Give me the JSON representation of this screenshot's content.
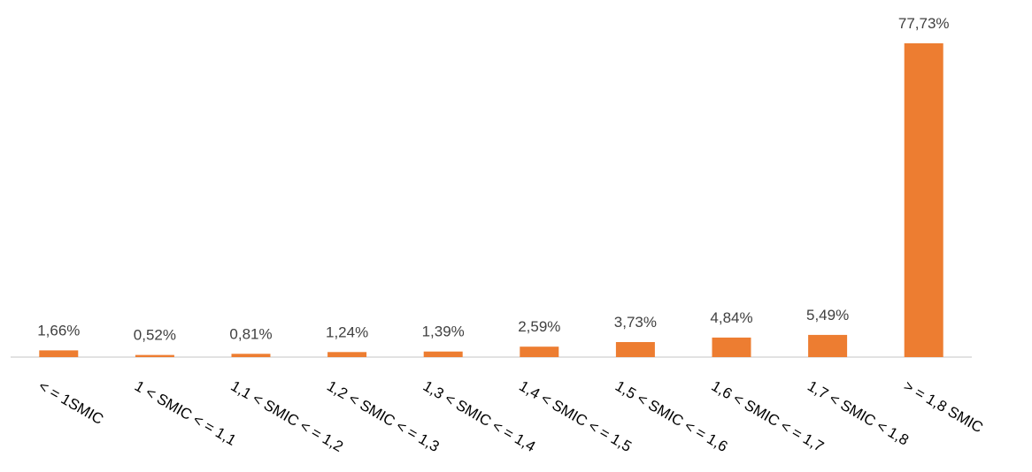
{
  "chart_data": {
    "type": "bar",
    "categories": [
      "< = 1SMIC",
      "1 < SMIC < = 1,1",
      "1,1 < SMIC < = 1,2",
      "1,2 < SMIC < = 1,3",
      "1,3 < SMIC < = 1,4",
      "1,4 < SMIC < = 1,5",
      "1,5 < SMIC < = 1,6",
      "1,6 < SMIC < = 1,7",
      "1,7 < SMIC < 1,8",
      "> = 1,8 SMIC"
    ],
    "values": [
      1.66,
      0.52,
      0.81,
      1.24,
      1.39,
      2.59,
      3.73,
      4.84,
      5.49,
      77.73
    ],
    "data_labels": [
      "1,66%",
      "0,52%",
      "0,81%",
      "1,24%",
      "1,39%",
      "2,59%",
      "3,73%",
      "4,84%",
      "5,49%",
      "77,73%"
    ],
    "value_unit": "%",
    "ylim": [
      0,
      77.73
    ],
    "grid": false,
    "legend": "none",
    "colors": {
      "bar": "#ED7D31",
      "axis": "#D9D9D9",
      "data_label": "#404040",
      "tick_label": "#000000"
    }
  }
}
